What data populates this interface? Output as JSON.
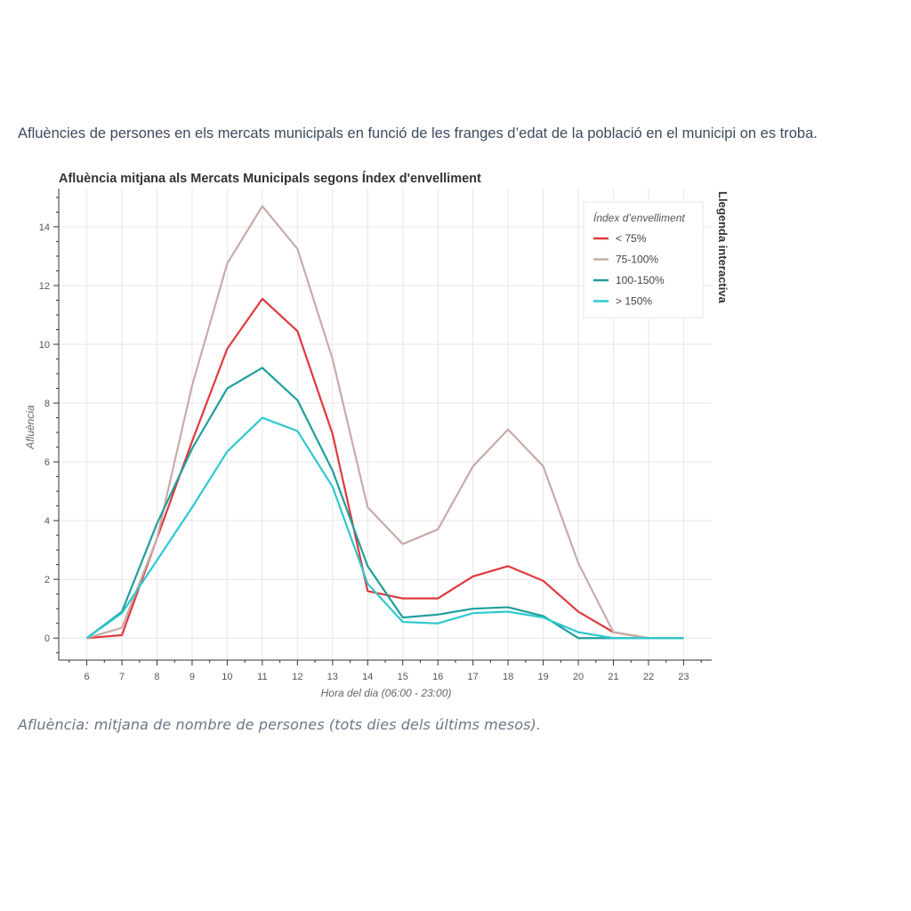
{
  "page": {
    "intro": "Afluències de persones en els mercats municipals en funció de les franges d’edat de la població en el municipi on es troba.",
    "caption": "Afluència: mitjana de nombre de persones (tots dies dels últims mesos)."
  },
  "legend_side_label": "Llegenda interactiva",
  "chart_data": {
    "type": "line",
    "title": "Afluència mitjana als Mercats Municipals segons Índex d'envelliment",
    "xlabel": "Hora del dia (06:00 - 23:00)",
    "ylabel": "Afluència",
    "x": [
      6,
      7,
      8,
      9,
      10,
      11,
      12,
      13,
      14,
      15,
      16,
      17,
      18,
      19,
      20,
      21,
      22,
      23
    ],
    "xlim": [
      5.2,
      23.8
    ],
    "ylim": [
      -0.75,
      15.3
    ],
    "yticks": [
      0,
      2,
      4,
      6,
      8,
      10,
      12,
      14
    ],
    "grid": true,
    "legend_title": "Índex d’envelliment",
    "legend_position": "top-right",
    "series": [
      {
        "name": "< 75%",
        "color": "#e0393e",
        "values": [
          0,
          0.1,
          3.4,
          6.7,
          9.85,
          11.55,
          10.45,
          6.95,
          1.6,
          1.35,
          1.35,
          2.1,
          2.45,
          1.95,
          0.9,
          0.2,
          0,
          0
        ]
      },
      {
        "name": "75-100%",
        "color": "#c7aca8",
        "values": [
          0,
          0.35,
          3.4,
          8.6,
          12.75,
          14.7,
          13.25,
          9.5,
          4.45,
          3.2,
          3.7,
          5.85,
          7.1,
          5.85,
          2.55,
          0.2,
          0,
          0
        ]
      },
      {
        "name": "100-150%",
        "color": "#1f9e9e",
        "values": [
          0,
          0.9,
          3.9,
          6.45,
          8.5,
          9.2,
          8.1,
          5.7,
          2.45,
          0.7,
          0.8,
          1.0,
          1.05,
          0.75,
          0,
          0,
          0,
          0
        ]
      },
      {
        "name": "> 150%",
        "color": "#2ec9cf",
        "values": [
          0,
          0.85,
          2.65,
          4.45,
          6.35,
          7.5,
          7.05,
          5.15,
          1.85,
          0.55,
          0.5,
          0.85,
          0.9,
          0.7,
          0.2,
          0,
          0,
          0
        ]
      }
    ]
  }
}
